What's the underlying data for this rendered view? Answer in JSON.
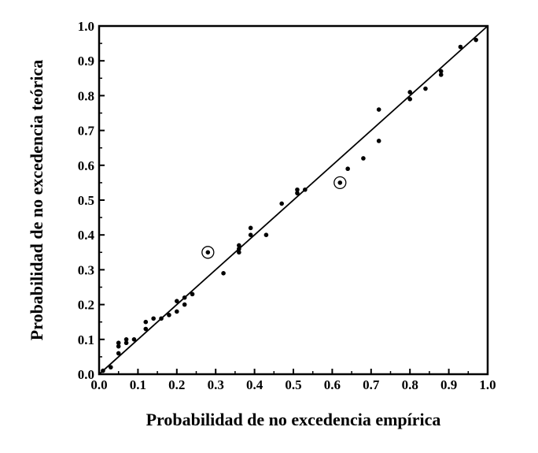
{
  "chart_data": {
    "type": "scatter",
    "xlabel": "Probabilidad de no excedencia empírica",
    "ylabel": "Probabilidad de no excedencia teórica",
    "xlim": [
      0.0,
      1.0
    ],
    "ylim": [
      0.0,
      1.0
    ],
    "x_ticks": [
      "0.0",
      "0.1",
      "0.2",
      "0.3",
      "0.4",
      "0.5",
      "0.6",
      "0.7",
      "0.8",
      "0.9",
      "1.0"
    ],
    "y_ticks": [
      "0.0",
      "0.1",
      "0.2",
      "0.3",
      "0.4",
      "0.5",
      "0.6",
      "0.7",
      "0.8",
      "0.9",
      "1.0"
    ],
    "grid": false,
    "legend": "none",
    "reference_line": {
      "from": [
        0.0,
        0.0
      ],
      "to": [
        1.0,
        1.0
      ]
    },
    "points": [
      {
        "x": 0.01,
        "y": 0.01
      },
      {
        "x": 0.03,
        "y": 0.02
      },
      {
        "x": 0.05,
        "y": 0.06
      },
      {
        "x": 0.05,
        "y": 0.08
      },
      {
        "x": 0.05,
        "y": 0.09
      },
      {
        "x": 0.07,
        "y": 0.09
      },
      {
        "x": 0.07,
        "y": 0.1
      },
      {
        "x": 0.09,
        "y": 0.1
      },
      {
        "x": 0.12,
        "y": 0.13
      },
      {
        "x": 0.12,
        "y": 0.15
      },
      {
        "x": 0.14,
        "y": 0.16
      },
      {
        "x": 0.16,
        "y": 0.16
      },
      {
        "x": 0.18,
        "y": 0.17
      },
      {
        "x": 0.2,
        "y": 0.18
      },
      {
        "x": 0.2,
        "y": 0.21
      },
      {
        "x": 0.22,
        "y": 0.2
      },
      {
        "x": 0.22,
        "y": 0.22
      },
      {
        "x": 0.24,
        "y": 0.23
      },
      {
        "x": 0.28,
        "y": 0.35
      },
      {
        "x": 0.32,
        "y": 0.29
      },
      {
        "x": 0.36,
        "y": 0.35
      },
      {
        "x": 0.36,
        "y": 0.36
      },
      {
        "x": 0.36,
        "y": 0.37
      },
      {
        "x": 0.39,
        "y": 0.4
      },
      {
        "x": 0.39,
        "y": 0.42
      },
      {
        "x": 0.43,
        "y": 0.4
      },
      {
        "x": 0.47,
        "y": 0.49
      },
      {
        "x": 0.51,
        "y": 0.52
      },
      {
        "x": 0.51,
        "y": 0.53
      },
      {
        "x": 0.53,
        "y": 0.53
      },
      {
        "x": 0.62,
        "y": 0.55
      },
      {
        "x": 0.64,
        "y": 0.59
      },
      {
        "x": 0.68,
        "y": 0.62
      },
      {
        "x": 0.72,
        "y": 0.67
      },
      {
        "x": 0.72,
        "y": 0.76
      },
      {
        "x": 0.8,
        "y": 0.79
      },
      {
        "x": 0.8,
        "y": 0.81
      },
      {
        "x": 0.84,
        "y": 0.82
      },
      {
        "x": 0.88,
        "y": 0.86
      },
      {
        "x": 0.88,
        "y": 0.87
      },
      {
        "x": 0.93,
        "y": 0.94
      },
      {
        "x": 0.97,
        "y": 0.96
      }
    ],
    "highlighted_points": [
      {
        "x": 0.28,
        "y": 0.35
      },
      {
        "x": 0.62,
        "y": 0.55
      }
    ]
  }
}
